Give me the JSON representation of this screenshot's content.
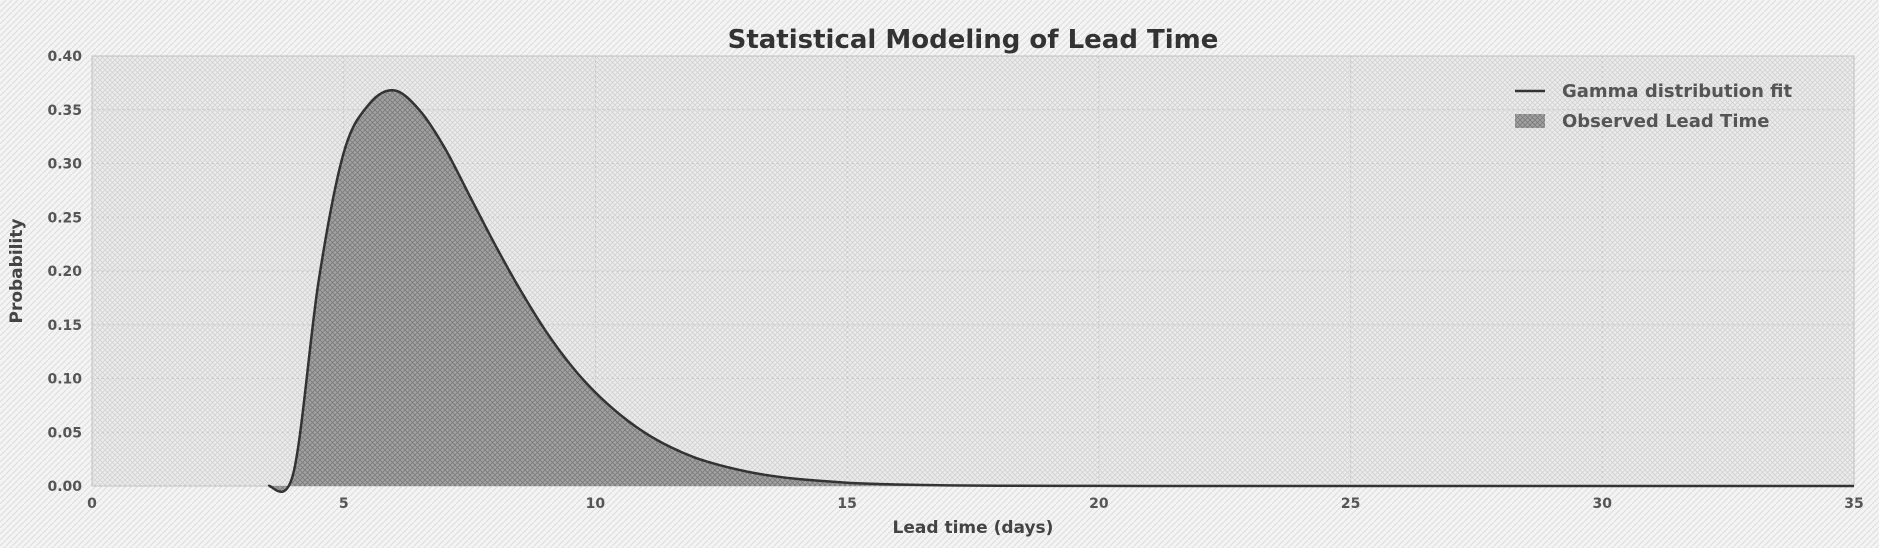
{
  "chart_data": {
    "type": "area",
    "title": "Statistical Modeling of Lead Time",
    "xlabel": "Lead time (days)",
    "ylabel": "Probability",
    "xlim": [
      0,
      35
    ],
    "ylim": [
      0.0,
      0.4
    ],
    "x_ticks": [
      0,
      5,
      10,
      15,
      20,
      25,
      30,
      35
    ],
    "y_ticks": [
      0.0,
      0.05,
      0.1,
      0.15,
      0.2,
      0.25,
      0.3,
      0.35,
      0.4
    ],
    "x_tick_labels": [
      "0",
      "5",
      "10",
      "15",
      "20",
      "25",
      "30",
      "35"
    ],
    "y_tick_labels": [
      "0.00",
      "0.05",
      "0.10",
      "0.15",
      "0.20",
      "0.25",
      "0.30",
      "0.35",
      "0.40"
    ],
    "grid": true,
    "legend_position": "top-right",
    "series": [
      {
        "name": "Gamma distribution fit",
        "kind": "line",
        "color": "#333333",
        "x": [
          3.5,
          4.0,
          4.5,
          5.0,
          5.5,
          6.0,
          6.5,
          7.0,
          7.5,
          8.0,
          8.5,
          9.0,
          9.5,
          10.0,
          10.5,
          11.0,
          11.5,
          12.0,
          12.5,
          13.0,
          13.5,
          14.0,
          15.0,
          16.0,
          17.0,
          18.0,
          20.0,
          22.0,
          24.0,
          35.0
        ],
        "y": [
          0.0,
          0.012,
          0.19,
          0.31,
          0.355,
          0.368,
          0.35,
          0.315,
          0.27,
          0.225,
          0.183,
          0.145,
          0.113,
          0.087,
          0.066,
          0.049,
          0.036,
          0.026,
          0.019,
          0.0135,
          0.0095,
          0.0066,
          0.0031,
          0.0014,
          0.0006,
          0.0003,
          0.0001,
          0.0,
          0.0,
          0.0
        ]
      },
      {
        "name": "Observed Lead Time",
        "kind": "area",
        "color": "#8a8a8a",
        "x": [
          3.5,
          4.0,
          4.5,
          5.0,
          5.5,
          6.0,
          6.5,
          7.0,
          7.5,
          8.0,
          8.5,
          9.0,
          9.5,
          10.0,
          10.5,
          11.0,
          11.5,
          12.0,
          12.5,
          13.0,
          13.5,
          14.0,
          15.0,
          16.0,
          17.0,
          18.0,
          20.0,
          22.0,
          24.0,
          35.0
        ],
        "y": [
          0.0,
          0.012,
          0.19,
          0.31,
          0.355,
          0.368,
          0.35,
          0.315,
          0.27,
          0.225,
          0.183,
          0.145,
          0.113,
          0.087,
          0.066,
          0.049,
          0.036,
          0.026,
          0.019,
          0.0135,
          0.0095,
          0.0066,
          0.0031,
          0.0014,
          0.0006,
          0.0003,
          0.0001,
          0.0,
          0.0,
          0.0
        ]
      }
    ]
  }
}
